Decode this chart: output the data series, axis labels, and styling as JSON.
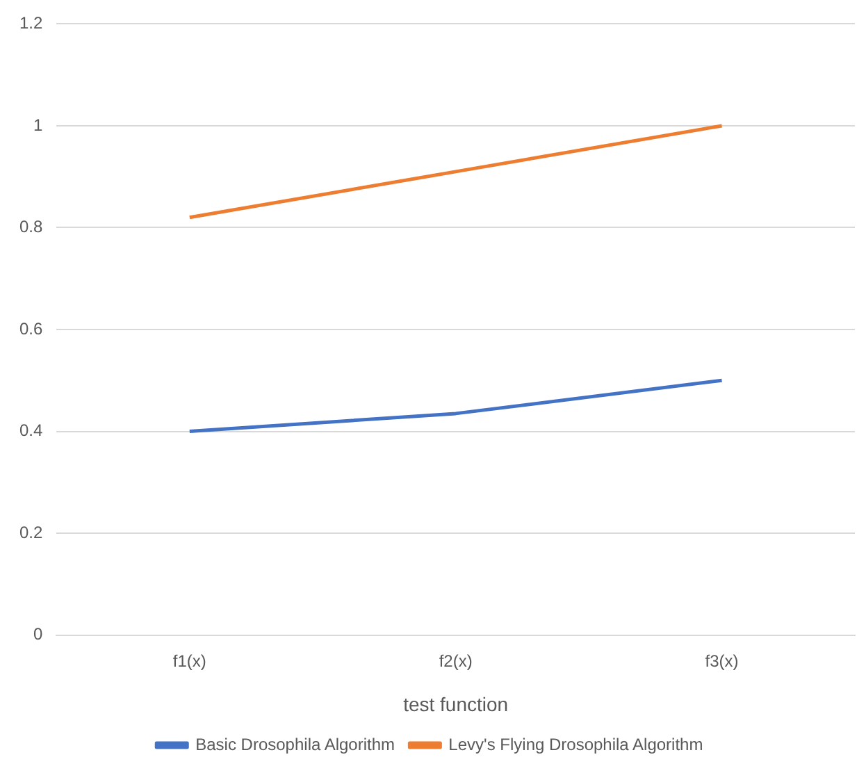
{
  "chart_data": {
    "type": "line",
    "xlabel": "test function",
    "categories": [
      "f1(x)",
      "f2(x)",
      "f3(x)"
    ],
    "series": [
      {
        "name": "Basic Drosophila Algorithm",
        "color": "#4472c4",
        "values": [
          0.4,
          0.435,
          0.5
        ]
      },
      {
        "name": "Levy's Flying Drosophila Algorithm",
        "color": "#ed7d31",
        "values": [
          0.82,
          0.91,
          1.0
        ]
      }
    ],
    "ylim": [
      0,
      1.2
    ],
    "yticks": [
      0,
      0.2,
      0.4,
      0.6,
      0.8,
      1,
      1.2
    ],
    "grid": "y",
    "legend": "bottom",
    "marker": "none",
    "line_style": "solid"
  }
}
